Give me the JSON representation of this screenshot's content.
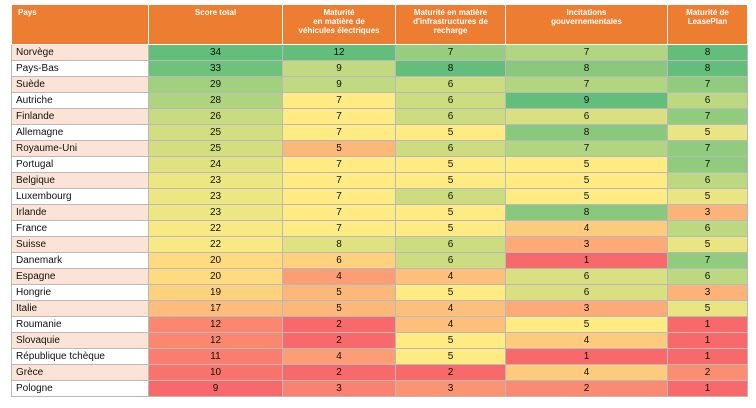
{
  "headers": [
    "Pays",
    "Score total",
    "Maturité\nen matière de\nvéhicules électriques",
    "Maturité en matière\nd'infrastructures de\nrecharge",
    "Incitations\ngouvernementales",
    "Maturité de\nLeasePlan"
  ],
  "rows": [
    {
      "pays": "Norvège",
      "score": 34,
      "ve": 12,
      "infra": 7,
      "incit": 7,
      "lp": 8
    },
    {
      "pays": "Pays-Bas",
      "score": 33,
      "ve": 9,
      "infra": 8,
      "incit": 8,
      "lp": 8
    },
    {
      "pays": "Suède",
      "score": 29,
      "ve": 9,
      "infra": 6,
      "incit": 7,
      "lp": 7
    },
    {
      "pays": "Autriche",
      "score": 28,
      "ve": 7,
      "infra": 6,
      "incit": 9,
      "lp": 6
    },
    {
      "pays": "Finlande",
      "score": 26,
      "ve": 7,
      "infra": 6,
      "incit": 6,
      "lp": 7
    },
    {
      "pays": "Allemagne",
      "score": 25,
      "ve": 7,
      "infra": 5,
      "incit": 8,
      "lp": 5
    },
    {
      "pays": "Royaume-Uni",
      "score": 25,
      "ve": 5,
      "infra": 6,
      "incit": 7,
      "lp": 7
    },
    {
      "pays": "Portugal",
      "score": 24,
      "ve": 7,
      "infra": 5,
      "incit": 5,
      "lp": 7
    },
    {
      "pays": "Belgique",
      "score": 23,
      "ve": 7,
      "infra": 5,
      "incit": 5,
      "lp": 6
    },
    {
      "pays": "Luxembourg",
      "score": 23,
      "ve": 7,
      "infra": 6,
      "incit": 5,
      "lp": 5
    },
    {
      "pays": "Irlande",
      "score": 23,
      "ve": 7,
      "infra": 5,
      "incit": 8,
      "lp": 3
    },
    {
      "pays": "France",
      "score": 22,
      "ve": 7,
      "infra": 5,
      "incit": 4,
      "lp": 6
    },
    {
      "pays": "Suisse",
      "score": 22,
      "ve": 8,
      "infra": 6,
      "incit": 3,
      "lp": 5
    },
    {
      "pays": "Danemark",
      "score": 20,
      "ve": 6,
      "infra": 6,
      "incit": 1,
      "lp": 7
    },
    {
      "pays": "Espagne",
      "score": 20,
      "ve": 4,
      "infra": 4,
      "incit": 6,
      "lp": 6
    },
    {
      "pays": "Hongrie",
      "score": 19,
      "ve": 5,
      "infra": 5,
      "incit": 6,
      "lp": 3
    },
    {
      "pays": "Italie",
      "score": 17,
      "ve": 5,
      "infra": 4,
      "incit": 3,
      "lp": 5
    },
    {
      "pays": "Roumanie",
      "score": 12,
      "ve": 2,
      "infra": 4,
      "incit": 5,
      "lp": 1
    },
    {
      "pays": "Slovaquie",
      "score": 12,
      "ve": 2,
      "infra": 5,
      "incit": 4,
      "lp": 1
    },
    {
      "pays": "République tchèque",
      "score": 11,
      "ve": 4,
      "infra": 5,
      "incit": 1,
      "lp": 1
    },
    {
      "pays": "Grèce",
      "score": 10,
      "ve": 2,
      "infra": 2,
      "incit": 4,
      "lp": 2
    },
    {
      "pays": "Pologne",
      "score": 9,
      "ve": 3,
      "infra": 3,
      "incit": 2,
      "lp": 1
    }
  ],
  "colors": {
    "header_bg": "#ed7d31",
    "header_text": "#ffffff",
    "country_band": "#fbe4d5",
    "scale_low": "#f8696b",
    "scale_mid": "#ffeb84",
    "scale_high": "#63be7b"
  }
}
